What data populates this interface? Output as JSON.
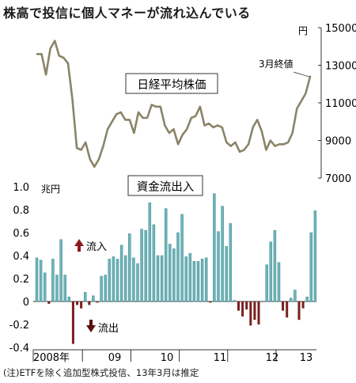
{
  "title": "株高で投信に個人マネーが流れ込んでいる",
  "note": "(注)ETFを除く追加型株式投信、13年3月は推定",
  "colors": {
    "price_line": "#8a8468",
    "inflow_bar": "#6fb3b8",
    "inflow_bar_edge": "#3d8d93",
    "outflow_bar": "#7a1f1f",
    "arrow_up": "#8b1a1a",
    "arrow_down": "#5a1010",
    "box_border": "#333333",
    "axis": "#333333"
  },
  "chart_data": [
    {
      "type": "line",
      "title": "日経平均株価",
      "unit": "円",
      "ylim": [
        7000,
        15000
      ],
      "yticks": [
        7000,
        9000,
        11000,
        13000,
        15000
      ],
      "annotation": "3月終値",
      "x_start": "2008-01",
      "x_end": "2013-03",
      "values": [
        13600,
        13600,
        12500,
        13900,
        14300,
        13500,
        13400,
        13100,
        11200,
        8600,
        8500,
        8900,
        8000,
        7600,
        8000,
        8700,
        9600,
        10000,
        10400,
        10500,
        10100,
        10100,
        9400,
        10500,
        10200,
        10200,
        10900,
        10800,
        10800,
        9800,
        9400,
        9600,
        8800,
        9300,
        9600,
        10200,
        10300,
        10800,
        9800,
        9900,
        9700,
        9800,
        9700,
        8900,
        8700,
        8900,
        8400,
        8500,
        8800,
        9700,
        10100,
        9500,
        8500,
        9000,
        8700,
        8800,
        8800,
        8900,
        9400,
        10700,
        11100,
        11500,
        12400
      ]
    },
    {
      "type": "bar",
      "title": "資金流出入",
      "unit": "兆円",
      "ylim": [
        -0.4,
        1.0
      ],
      "yticks": [
        -0.4,
        -0.2,
        0,
        0.2,
        0.4,
        0.6,
        0.8,
        1.0
      ],
      "inflow_label": "流入",
      "outflow_label": "流出",
      "x_labels": [
        "2008年",
        "09",
        "10",
        "11",
        "12",
        "13"
      ],
      "values": [
        0.38,
        0.36,
        0.25,
        -0.02,
        0.37,
        0.23,
        0.54,
        0.23,
        0.04,
        -0.37,
        -0.03,
        -0.06,
        0.08,
        -0.03,
        0.05,
        -0.01,
        0.22,
        0.23,
        0.37,
        0.39,
        0.37,
        0.49,
        0.4,
        0.59,
        0.38,
        0.33,
        0.63,
        0.62,
        0.86,
        0.67,
        0.4,
        0.4,
        0.81,
        0.5,
        0.46,
        0.6,
        0.76,
        0.39,
        0.42,
        0.35,
        0.35,
        0.37,
        0.38,
        -0.01,
        0.94,
        0.61,
        0.83,
        0.48,
        0.68,
        0.01,
        -0.08,
        -0.13,
        -0.07,
        -0.21,
        -0.16,
        -0.2,
        0.0,
        0.32,
        0.52,
        0.62,
        0.34,
        -0.08,
        -0.14,
        0.03,
        0.1,
        -0.16,
        -0.06,
        0.04,
        0.6,
        0.79
      ]
    }
  ]
}
